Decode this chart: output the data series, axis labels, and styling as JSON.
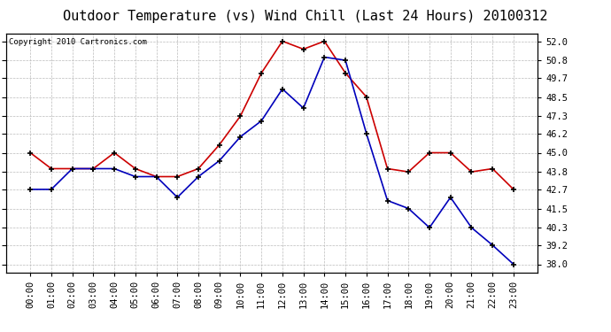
{
  "title": "Outdoor Temperature (vs) Wind Chill (Last 24 Hours) 20100312",
  "copyright": "Copyright 2010 Cartronics.com",
  "hours": [
    "00:00",
    "01:00",
    "02:00",
    "03:00",
    "04:00",
    "05:00",
    "06:00",
    "07:00",
    "08:00",
    "09:00",
    "10:00",
    "11:00",
    "12:00",
    "13:00",
    "14:00",
    "15:00",
    "16:00",
    "17:00",
    "18:00",
    "19:00",
    "20:00",
    "21:00",
    "22:00",
    "23:00"
  ],
  "red_temp": [
    45.0,
    44.0,
    44.0,
    44.0,
    45.0,
    44.0,
    43.5,
    43.5,
    44.0,
    45.5,
    47.3,
    50.0,
    52.0,
    51.5,
    52.0,
    50.0,
    48.5,
    44.0,
    43.8,
    45.0,
    45.0,
    43.8,
    44.0,
    42.7
  ],
  "blue_wc": [
    42.7,
    42.7,
    44.0,
    44.0,
    44.0,
    43.5,
    43.5,
    42.2,
    43.5,
    44.5,
    46.0,
    47.0,
    49.0,
    47.8,
    51.0,
    50.8,
    46.2,
    42.0,
    41.5,
    40.3,
    42.2,
    40.3,
    39.2,
    38.0
  ],
  "ylim": [
    37.5,
    52.5
  ],
  "yticks": [
    38.0,
    39.2,
    40.3,
    41.5,
    42.7,
    43.8,
    45.0,
    46.2,
    47.3,
    48.5,
    49.7,
    50.8,
    52.0
  ],
  "red_color": "#cc0000",
  "blue_color": "#0000bb",
  "bg_color": "#ffffff",
  "grid_color": "#bbbbbb",
  "title_fontsize": 11,
  "tick_fontsize": 7.5,
  "copyright_fontsize": 6.5
}
